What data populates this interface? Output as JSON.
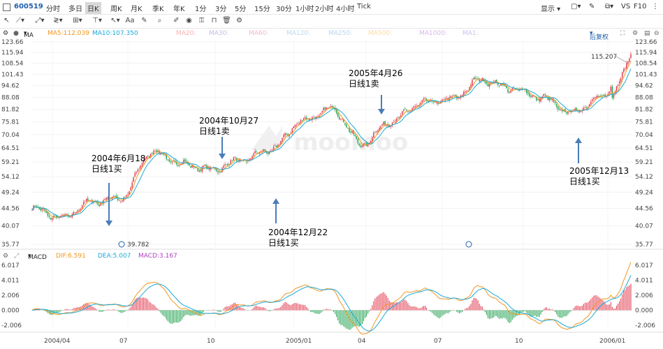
{
  "header": {
    "stock_code": "600519",
    "timeframes": [
      "分时",
      "多日",
      "日K",
      "周K",
      "月K",
      "季K",
      "年K",
      "1分",
      "3分",
      "5分",
      "15分",
      "30分",
      "1小时",
      "2小时",
      "4小时",
      "Tick"
    ],
    "active_timeframe": "日K",
    "display_label": "显示",
    "vs_label": "VS",
    "f10_label": "F10"
  },
  "indicators": {
    "ma_label": "MA",
    "ma5": "MA5:112.039",
    "ma10": "MA10:107.350",
    "ma_inactive": [
      "MA20:",
      "MA30:",
      "MA60:",
      "MA120:",
      "MA250:",
      "MA500:",
      "MA1000:",
      "MA1:"
    ],
    "adjust_label": "后复权"
  },
  "macd_header": {
    "label": "MACD",
    "dif": "DIF:6.591",
    "dea": "DEA:5.007",
    "macd": "MACD:3.167"
  },
  "price_axis": [
    "123.66",
    "115.94",
    "108.54",
    "101.43",
    "94.62",
    "88.08",
    "81.82",
    "75.81",
    "70.04",
    "64.51",
    "59.21",
    "54.12",
    "49.24",
    "44.56",
    "40.07",
    "35.77"
  ],
  "macd_axis": [
    "6.017",
    "4.011",
    "2.006",
    "0.000",
    "-2.006"
  ],
  "x_axis": [
    "2004/04",
    "07",
    "10",
    "2005/01",
    "04",
    "07",
    "10",
    "2006/01"
  ],
  "markers": {
    "low_price": "39.782",
    "high_price": "115.207"
  },
  "annotations": [
    {
      "date": "2004年6月18",
      "signal": "日线1买"
    },
    {
      "date": "2004年10月27",
      "signal": "日线1卖"
    },
    {
      "date": "2004年12月22",
      "signal": "日线1买"
    },
    {
      "date": "2005年4月26",
      "signal": "日线1卖"
    },
    {
      "date": "2005年12月13",
      "signal": "日线1买"
    }
  ],
  "watermark": "moomoo",
  "colors": {
    "up": "#e0364a",
    "down": "#1b9e4b",
    "ma5": "#f29520",
    "ma10": "#1aa9d6",
    "dif": "#f29520",
    "dea": "#1aa9d6",
    "arrow": "#4a7db8",
    "accent": "#1f5fae"
  },
  "chart_data": {
    "type": "candlestick",
    "scale": "log",
    "ylim": [
      35.77,
      123.66
    ],
    "series_anchors": {
      "x_dates": [
        "2004-04",
        "2004-06",
        "2004-08",
        "2004-09",
        "2004-10",
        "2004-11",
        "2004-12",
        "2005-01",
        "2005-02",
        "2005-03",
        "2005-04",
        "2005-05",
        "2005-06",
        "2005-07",
        "2005-08",
        "2005-09",
        "2005-10",
        "2005-11",
        "2005-12",
        "2006-01",
        "2006-02"
      ],
      "close": [
        44.5,
        42.0,
        46.5,
        47.5,
        63.0,
        58.5,
        56.5,
        60.0,
        64.0,
        76.0,
        82.0,
        66.0,
        76.0,
        85.0,
        87.0,
        98.0,
        93.0,
        88.0,
        80.0,
        88.0,
        112.0
      ]
    }
  }
}
